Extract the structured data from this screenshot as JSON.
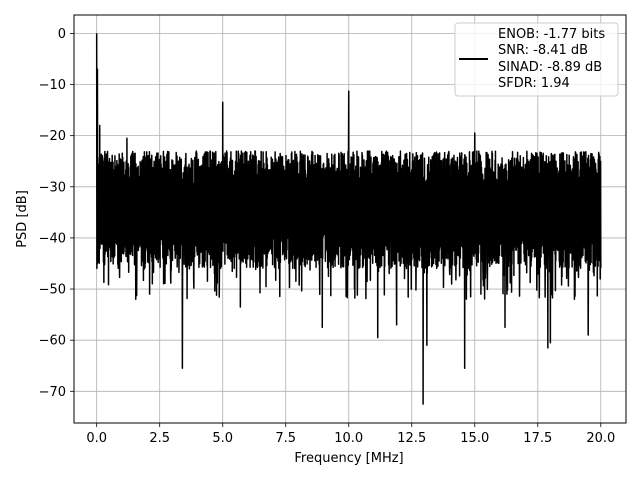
{
  "chart_data": {
    "type": "line",
    "title": "",
    "xlabel": "Frequency [MHz]",
    "ylabel": "PSD [dB]",
    "xlim": [
      -0.9,
      21.0
    ],
    "ylim": [
      -76.2,
      3.6
    ],
    "x_ticks": [
      0.0,
      2.5,
      5.0,
      7.5,
      10.0,
      12.5,
      15.0,
      17.5,
      20.0
    ],
    "x_tick_labels": [
      "0.0",
      "2.5",
      "5.0",
      "7.5",
      "10.0",
      "12.5",
      "15.0",
      "17.5",
      "20.0"
    ],
    "y_ticks": [
      0,
      -10,
      -20,
      -30,
      -40,
      -50,
      -60,
      -70
    ],
    "y_tick_labels": [
      "0",
      "−10",
      "−20",
      "−30",
      "−40",
      "−50",
      "−60",
      "−70"
    ],
    "grid": true,
    "legend_position": "upper right",
    "legend_entries": [
      "ENOB: -1.77 bits",
      "SNR: -8.41 dB",
      "SINAD: -8.89 dB",
      "SFDR: 1.94"
    ],
    "series": [
      {
        "color": "#000000",
        "noise_floor": {
          "x_range": [
            0.0,
            20.0
          ],
          "typical_db_range": [
            -42,
            -24
          ]
        },
        "peaks": [
          {
            "x": 0.0,
            "y": 0.0
          },
          {
            "x": 0.03,
            "y": -7.0
          },
          {
            "x": 0.12,
            "y": -18.0
          },
          {
            "x": 1.2,
            "y": -20.5
          },
          {
            "x": 5.0,
            "y": -13.5
          },
          {
            "x": 10.0,
            "y": -11.3
          },
          {
            "x": 15.0,
            "y": -19.5
          }
        ],
        "dips": [
          {
            "x": 1.55,
            "y": -52.0
          },
          {
            "x": 2.1,
            "y": -51.0
          },
          {
            "x": 3.4,
            "y": -65.5
          },
          {
            "x": 5.7,
            "y": -53.5
          },
          {
            "x": 8.95,
            "y": -57.5
          },
          {
            "x": 11.15,
            "y": -59.5
          },
          {
            "x": 11.9,
            "y": -57.0
          },
          {
            "x": 12.95,
            "y": -72.5
          },
          {
            "x": 13.1,
            "y": -61.0
          },
          {
            "x": 14.6,
            "y": -65.5
          },
          {
            "x": 16.2,
            "y": -57.5
          },
          {
            "x": 17.9,
            "y": -61.5
          },
          {
            "x": 18.0,
            "y": -60.5
          },
          {
            "x": 19.5,
            "y": -59.0
          }
        ]
      }
    ]
  }
}
